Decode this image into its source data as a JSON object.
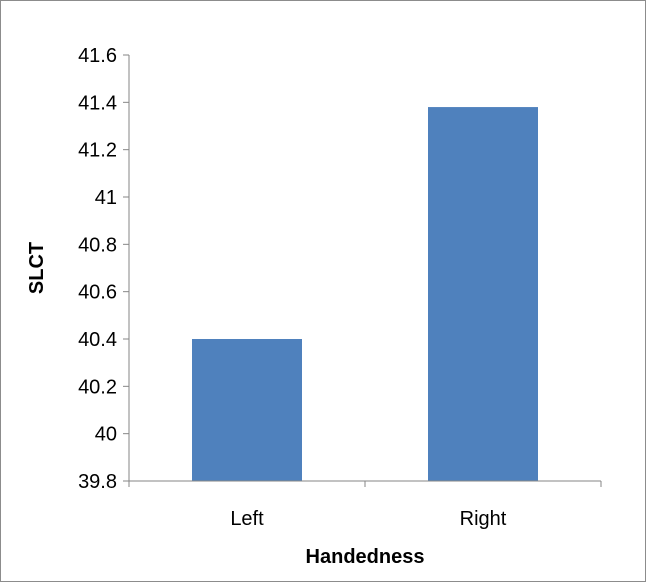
{
  "chart_data": {
    "type": "bar",
    "title": "",
    "xlabel": "Handedness",
    "ylabel": "SLCT",
    "categories": [
      "Left",
      "Right"
    ],
    "values": [
      40.4,
      41.38
    ],
    "ylim": [
      39.8,
      41.6
    ],
    "yticks": [
      "39.8",
      "40",
      "40.2",
      "40.4",
      "40.6",
      "40.8",
      "41",
      "41.2",
      "41.4",
      "41.6"
    ],
    "grid": false,
    "legend": "none",
    "colors": {
      "bar": "#4F81BD",
      "axis": "#868686"
    }
  }
}
